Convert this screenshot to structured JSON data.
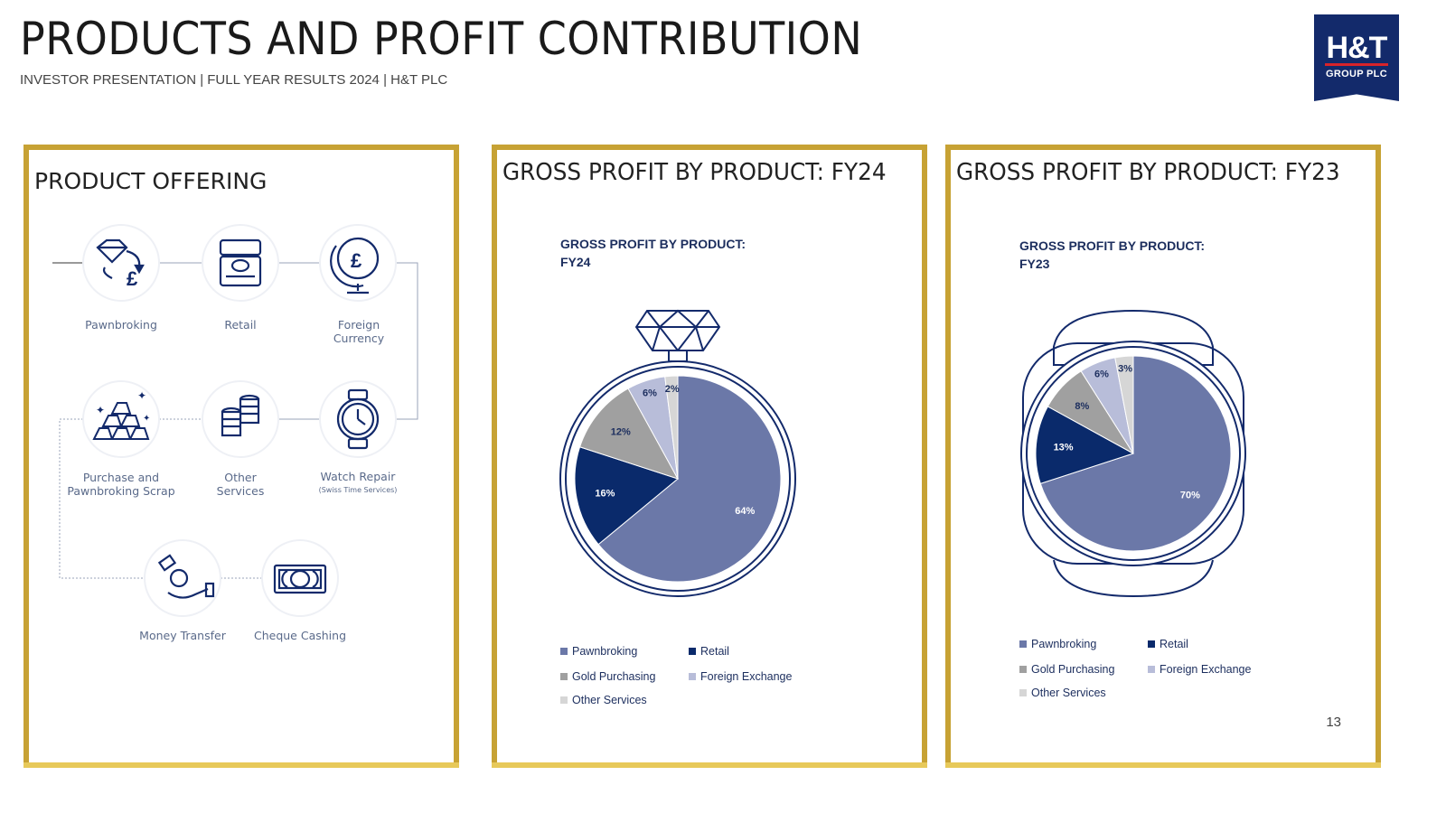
{
  "header": {
    "title": "PRODUCTS AND PROFIT CONTRIBUTION",
    "subtitle": "INVESTOR PRESENTATION | FULL YEAR RESULTS 2024 | H&T PLC",
    "logo_main": "H&T",
    "logo_sub": "GROUP PLC"
  },
  "product_panel": {
    "title": "PRODUCT OFFERING",
    "products": [
      {
        "label": "Pawnbroking",
        "icon": "diamond-exchange-icon"
      },
      {
        "label": "Retail",
        "icon": "ring-box-icon"
      },
      {
        "label": "Foreign Currency",
        "icon": "globe-pound-icon"
      },
      {
        "label": "Purchase and Pawnbroking Scrap",
        "icon": "gold-bars-icon"
      },
      {
        "label": "Other Services",
        "icon": "coin-stack-icon"
      },
      {
        "label": "Watch Repair",
        "sublabel": "(Swiss Time Services)",
        "icon": "watch-icon"
      },
      {
        "label": "Money Transfer",
        "icon": "hand-coin-icon"
      },
      {
        "label": "Cheque Cashing",
        "icon": "banknote-icon"
      }
    ]
  },
  "colors": {
    "gold_border": "#c7a234",
    "navy": "#132a6b",
    "pawnbroking": "#6b78a8",
    "retail": "#0a2a6b",
    "gold_purchasing": "#a0a0a0",
    "foreign_exchange": "#b8bdd9",
    "other_services": "#d6d6d6"
  },
  "page_number": "13",
  "chart_data": [
    {
      "type": "pie",
      "title": "GROSS PROFIT BY PRODUCT: FY24",
      "heading_lines": [
        "GROSS PROFIT BY PRODUCT:",
        "FY24"
      ],
      "categories": [
        "Pawnbroking",
        "Retail",
        "Gold Purchasing",
        "Foreign Exchange",
        "Other Services"
      ],
      "values": [
        64,
        16,
        12,
        6,
        2
      ],
      "labels": [
        "64%",
        "16%",
        "12%",
        "6%",
        "2%"
      ],
      "legend": "bottom",
      "frame": "ring"
    },
    {
      "type": "pie",
      "title": "GROSS PROFIT BY PRODUCT:  FY23",
      "heading_lines": [
        "GROSS PROFIT BY PRODUCT:",
        "FY23"
      ],
      "categories": [
        "Pawnbroking",
        "Retail",
        "Gold Purchasing",
        "Foreign Exchange",
        "Other Services"
      ],
      "values": [
        70,
        13,
        8,
        6,
        3
      ],
      "labels": [
        "70%",
        "13%",
        "8%",
        "6%",
        "3%"
      ],
      "legend": "bottom",
      "frame": "watch"
    }
  ]
}
